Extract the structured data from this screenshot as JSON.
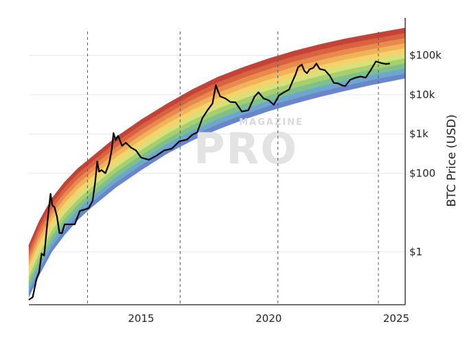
{
  "chart_data": {
    "type": "line",
    "title": "",
    "xlabel": "",
    "ylabel": "BTC Price (USD)",
    "y_scale": "log",
    "xlim": [
      2010.6,
      2025.35
    ],
    "ylim": [
      0.045,
      900000
    ],
    "grid": true,
    "x_ticks": [
      {
        "value": 2015,
        "label": "2015"
      },
      {
        "value": 2020,
        "label": "2020"
      },
      {
        "value": 2025,
        "label": "2025"
      }
    ],
    "y_ticks": [
      {
        "value": 1,
        "label": "$1"
      },
      {
        "value": 100,
        "label": "$100"
      },
      {
        "value": 1000,
        "label": "$1k"
      },
      {
        "value": 10000,
        "label": "$10k"
      },
      {
        "value": 100000,
        "label": "$100k"
      }
    ],
    "halving_dates": [
      2012.9,
      2016.53,
      2020.36,
      2024.3
    ],
    "watermark": {
      "top": "MAGAZINE",
      "main": "PRO"
    },
    "rainbow": {
      "colors": [
        "#6a86c8",
        "#6fa6cf",
        "#7cc08e",
        "#a6cf6f",
        "#d8e07a",
        "#f2d46a",
        "#f0b35a",
        "#e88a4d",
        "#d9623f",
        "#c44336"
      ],
      "lower_bound": {
        "x": [
          2010.6,
          2011.0,
          2011.5,
          2012.0,
          2012.5,
          2013.0,
          2014.0,
          2015.0,
          2016.0,
          2017.0,
          2018.0,
          2019.0,
          2020.0,
          2021.0,
          2022.0,
          2023.0,
          2024.0,
          2025.35
        ],
        "y": [
          0.07,
          0.25,
          1.0,
          2.7,
          6.3,
          12.6,
          43,
          120,
          310,
          680,
          1300,
          2300,
          3800,
          5900,
          8800,
          12500,
          17500,
          26000
        ]
      },
      "upper_bound": {
        "x": [
          2010.6,
          2011.0,
          2011.5,
          2012.0,
          2012.5,
          2013.0,
          2014.0,
          2015.0,
          2016.0,
          2017.0,
          2018.0,
          2019.0,
          2020.0,
          2021.0,
          2022.0,
          2023.0,
          2024.0,
          2025.35
        ],
        "y": [
          1.5,
          6,
          23,
          60,
          130,
          240,
          820,
          2300,
          5800,
          13500,
          28000,
          50000,
          83000,
          130000,
          190000,
          265000,
          350000,
          500000
        ]
      }
    },
    "series": [
      {
        "x": [
          2010.6,
          2010.75,
          2010.9,
          2011.0,
          2011.1,
          2011.2,
          2011.35,
          2011.45,
          2011.52,
          2011.6,
          2011.7,
          2011.8,
          2011.9,
          2012.0,
          2012.2,
          2012.4,
          2012.6,
          2012.8,
          2012.95,
          2013.1,
          2013.2,
          2013.28,
          2013.35,
          2013.45,
          2013.6,
          2013.75,
          2013.85,
          2013.92,
          2014.0,
          2014.1,
          2014.25,
          2014.4,
          2014.6,
          2014.8,
          2015.0,
          2015.3,
          2015.6,
          2015.9,
          2016.2,
          2016.5,
          2016.8,
          2017.0,
          2017.2,
          2017.4,
          2017.6,
          2017.8,
          2017.93,
          2018.0,
          2018.1,
          2018.3,
          2018.5,
          2018.7,
          2018.95,
          2019.2,
          2019.45,
          2019.6,
          2019.8,
          2020.0,
          2020.2,
          2020.4,
          2020.6,
          2020.8,
          2020.95,
          2021.05,
          2021.15,
          2021.3,
          2021.4,
          2021.5,
          2021.6,
          2021.75,
          2021.87,
          2022.0,
          2022.2,
          2022.4,
          2022.55,
          2022.7,
          2022.9,
          2023.0,
          2023.2,
          2023.4,
          2023.6,
          2023.8,
          2024.0,
          2024.2,
          2024.4,
          2024.6,
          2024.75
        ],
        "y": [
          0.06,
          0.07,
          0.2,
          0.3,
          0.9,
          0.8,
          8,
          30,
          15,
          14,
          8,
          3,
          3,
          5,
          5,
          5,
          11,
          12,
          13,
          20,
          60,
          200,
          110,
          120,
          100,
          180,
          400,
          1050,
          700,
          900,
          500,
          600,
          450,
          380,
          250,
          220,
          280,
          380,
          420,
          650,
          720,
          950,
          1100,
          2500,
          4000,
          6000,
          17500,
          13000,
          9000,
          8000,
          6500,
          6400,
          3700,
          4000,
          9000,
          11500,
          8000,
          7200,
          5500,
          9500,
          11500,
          13500,
          23000,
          32000,
          50000,
          58000,
          40000,
          35000,
          44000,
          48000,
          62000,
          45000,
          42000,
          30000,
          20000,
          19500,
          17000,
          16500,
          24000,
          27000,
          29000,
          27000,
          42000,
          70000,
          64000,
          60000,
          62000
        ]
      }
    ]
  }
}
